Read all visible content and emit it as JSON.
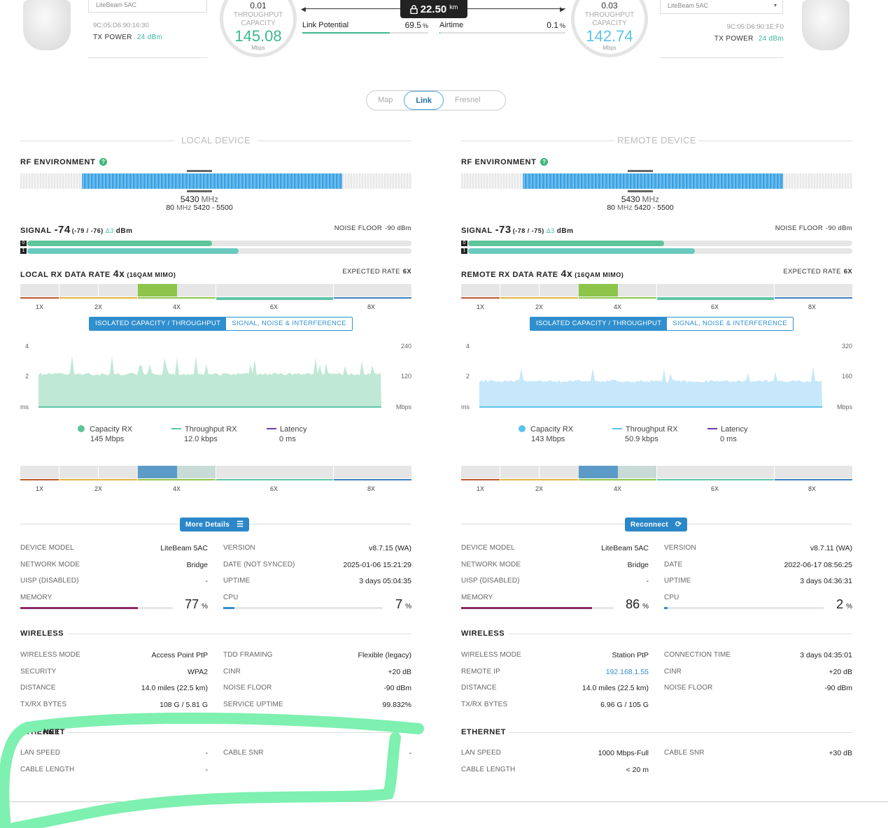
{
  "top": {
    "local": {
      "model": "LiteBeam 5AC",
      "mac": "9C:05:D6:90:16:30",
      "tx_label": "TX POWER",
      "tx_value": "24 dBm",
      "gauge_top": "0.01",
      "gauge_l1": "THROUGHPUT",
      "gauge_l2": "CAPACITY",
      "gauge_value": "145.08",
      "gauge_unit": "Mbps"
    },
    "remote": {
      "model": "LiteBeam 5AC",
      "mac": "9C:05:D6:90:1E:F0",
      "tx_label": "TX POWER",
      "tx_value": "24 dBm",
      "gauge_top": "0.03",
      "gauge_l1": "THROUGHPUT",
      "gauge_l2": "CAPACITY",
      "gauge_value": "142.74",
      "gauge_unit": "Mbps"
    },
    "distance": "22.50",
    "distance_unit": "km",
    "link_potential_label": "Link Potential",
    "link_potential_value": "69.5",
    "link_potential_unit": "%",
    "link_potential_fraction": 0.695,
    "airtime_label": "Airtime",
    "airtime_value": "0.1",
    "airtime_unit": "%",
    "airtime_fraction": 0.001
  },
  "tabs": {
    "map": "Map",
    "link": "Link",
    "fresnel": "Fresnel"
  },
  "local": {
    "title": "LOCAL DEVICE",
    "rf_label": "RF ENVIRONMENT",
    "freq": "5430",
    "freq_unit": "MHz",
    "width": "80",
    "width_unit": "MHz",
    "range": "5420 - 5500",
    "signal_label": "SIGNAL",
    "signal_value": "-74",
    "signal_chains": "(-79 / -76)",
    "signal_delta": "Δ3",
    "signal_unit": "dBm",
    "noise_label": "NOISE FLOOR",
    "noise_value": "-90 dBm",
    "chain0_fraction": 0.48,
    "chain1_fraction": 0.55,
    "rx_label": "LOCAL RX DATA RATE",
    "rx_rate": "4x",
    "rx_mod": "(16QAM MIMO)",
    "expected_label": "EXPECTED RATE",
    "expected_value": "6X",
    "toggle_on": "ISOLATED CAPACITY / THROUGHPUT",
    "toggle_off": "SIGNAL, NOISE & INTERFERENCE",
    "y_left": [
      "4",
      "2",
      "ms"
    ],
    "y_right": [
      "240",
      "120",
      "Mbps"
    ],
    "legend": [
      {
        "name": "Capacity RX",
        "value": "145 Mbps"
      },
      {
        "name": "Throughput RX",
        "value": "12.0 kbps"
      },
      {
        "name": "Latency",
        "value": "0 ms"
      }
    ],
    "button": "More Details",
    "info": [
      [
        "DEVICE MODEL",
        "LiteBeam 5AC",
        "VERSION",
        "v8.7.15 (WA)"
      ],
      [
        "NETWORK MODE",
        "Bridge",
        "DATE (NOT SYNCED)",
        "2025-01-06 15:21:29"
      ],
      [
        "UISP (DISABLED)",
        "-",
        "UPTIME",
        "3 days 05:04:35"
      ]
    ],
    "memory_label": "MEMORY",
    "memory_value": "77",
    "memory_fraction": 0.77,
    "cpu_label": "CPU",
    "cpu_value": "7",
    "cpu_fraction": 0.07,
    "pct": "%",
    "wireless_title": "WIRELESS",
    "wireless": [
      [
        "WIRELESS MODE",
        "Access Point PtP",
        "TDD FRAMING",
        "Flexible (legacy)"
      ],
      [
        "SECURITY",
        "WPA2",
        "CINR",
        "+20 dB"
      ],
      [
        "DISTANCE",
        "14.0 miles (22.5 km)",
        "NOISE FLOOR",
        "-90 dBm"
      ],
      [
        "TX/RX BYTES",
        "108 G / 5.81 G",
        "SERVICE UPTIME",
        "99.832%"
      ]
    ],
    "ethernet_title": "ETHERNET",
    "ethernet": [
      [
        "LAN SPEED",
        "-",
        "CABLE SNR",
        "-"
      ],
      [
        "CABLE LENGTH",
        "-",
        "",
        ""
      ]
    ]
  },
  "remote": {
    "title": "REMOTE DEVICE",
    "rf_label": "RF ENVIRONMENT",
    "freq": "5430",
    "freq_unit": "MHz",
    "width": "80",
    "width_unit": "MHz",
    "range": "5420 - 5500",
    "signal_label": "SIGNAL",
    "signal_value": "-73",
    "signal_chains": "(-78 / -75)",
    "signal_delta": "Δ3",
    "signal_unit": "dBm",
    "noise_label": "NOISE FLOOR",
    "noise_value": "-90 dBm",
    "chain0_fraction": 0.51,
    "chain1_fraction": 0.59,
    "rx_label": "REMOTE RX DATA RATE",
    "rx_rate": "4x",
    "rx_mod": "(16QAM MIMO)",
    "expected_label": "EXPECTED RATE",
    "expected_value": "6X",
    "toggle_on": "ISOLATED CAPACITY / THROUGHPUT",
    "toggle_off": "SIGNAL, NOISE & INTERFERENCE",
    "y_left": [
      "4",
      "2",
      "ms"
    ],
    "y_right": [
      "320",
      "160",
      "Mbps"
    ],
    "legend": [
      {
        "name": "Capacity RX",
        "value": "143 Mbps"
      },
      {
        "name": "Throughput RX",
        "value": "50.9 kbps"
      },
      {
        "name": "Latency",
        "value": "0 ms"
      }
    ],
    "button": "Reconnect",
    "info": [
      [
        "DEVICE MODEL",
        "LiteBeam 5AC",
        "VERSION",
        "v8.7.11 (WA)"
      ],
      [
        "NETWORK MODE",
        "Bridge",
        "DATE",
        "2022-06-17 08:56:25"
      ],
      [
        "UISP (DISABLED)",
        "-",
        "UPTIME",
        "3 days 04:36:31"
      ]
    ],
    "memory_label": "MEMORY",
    "memory_value": "86",
    "memory_fraction": 0.86,
    "cpu_label": "CPU",
    "cpu_value": "2",
    "cpu_fraction": 0.02,
    "pct": "%",
    "wireless_title": "WIRELESS",
    "wireless": [
      [
        "WIRELESS MODE",
        "Station PtP",
        "CONNECTION TIME",
        "3 days 04:35:01"
      ],
      [
        "REMOTE IP",
        "192.168.1.55",
        "CINR",
        "+20 dB"
      ],
      [
        "DISTANCE",
        "14.0 miles (22.5 km)",
        "NOISE FLOOR",
        "-90 dBm"
      ],
      [
        "TX/RX BYTES",
        "6.96 G / 105 G",
        "",
        ""
      ]
    ],
    "ethernet_title": "ETHERNET",
    "ethernet": [
      [
        "LAN SPEED",
        "1000 Mbps-Full",
        "CABLE SNR",
        "+30 dB"
      ],
      [
        "CABLE LENGTH",
        "< 20 m",
        "",
        ""
      ]
    ]
  },
  "rate_ticks": [
    "1X",
    "2X",
    "4X",
    "6X",
    "8X"
  ],
  "colors": {
    "accent": "#2f8fcf",
    "local_fill": "#bfe8d6",
    "remote_fill": "#c6e8fa",
    "highlight": "#7ef0b0",
    "memory": "#8b2a62"
  }
}
